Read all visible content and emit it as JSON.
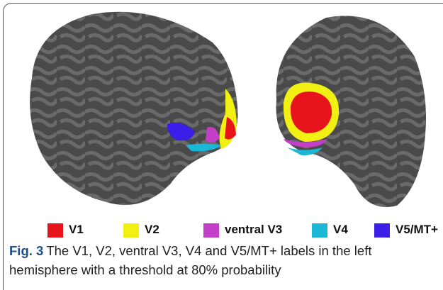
{
  "figure": {
    "legend": [
      {
        "label": "V1",
        "color": "#e8141c"
      },
      {
        "label": "V2",
        "color": "#f2ef12"
      },
      {
        "label": "ventral V3",
        "color": "#c43fc8"
      },
      {
        "label": "V4",
        "color": "#1ab7d6"
      },
      {
        "label": "V5/MT+",
        "color": "#3b1ee8"
      }
    ],
    "caption": {
      "label": "Fig. 3",
      "text": "The V1, V2, ventral V3, V4 and V5/MT+ labels in the left hemisphere with a threshold at 80% probability"
    }
  }
}
